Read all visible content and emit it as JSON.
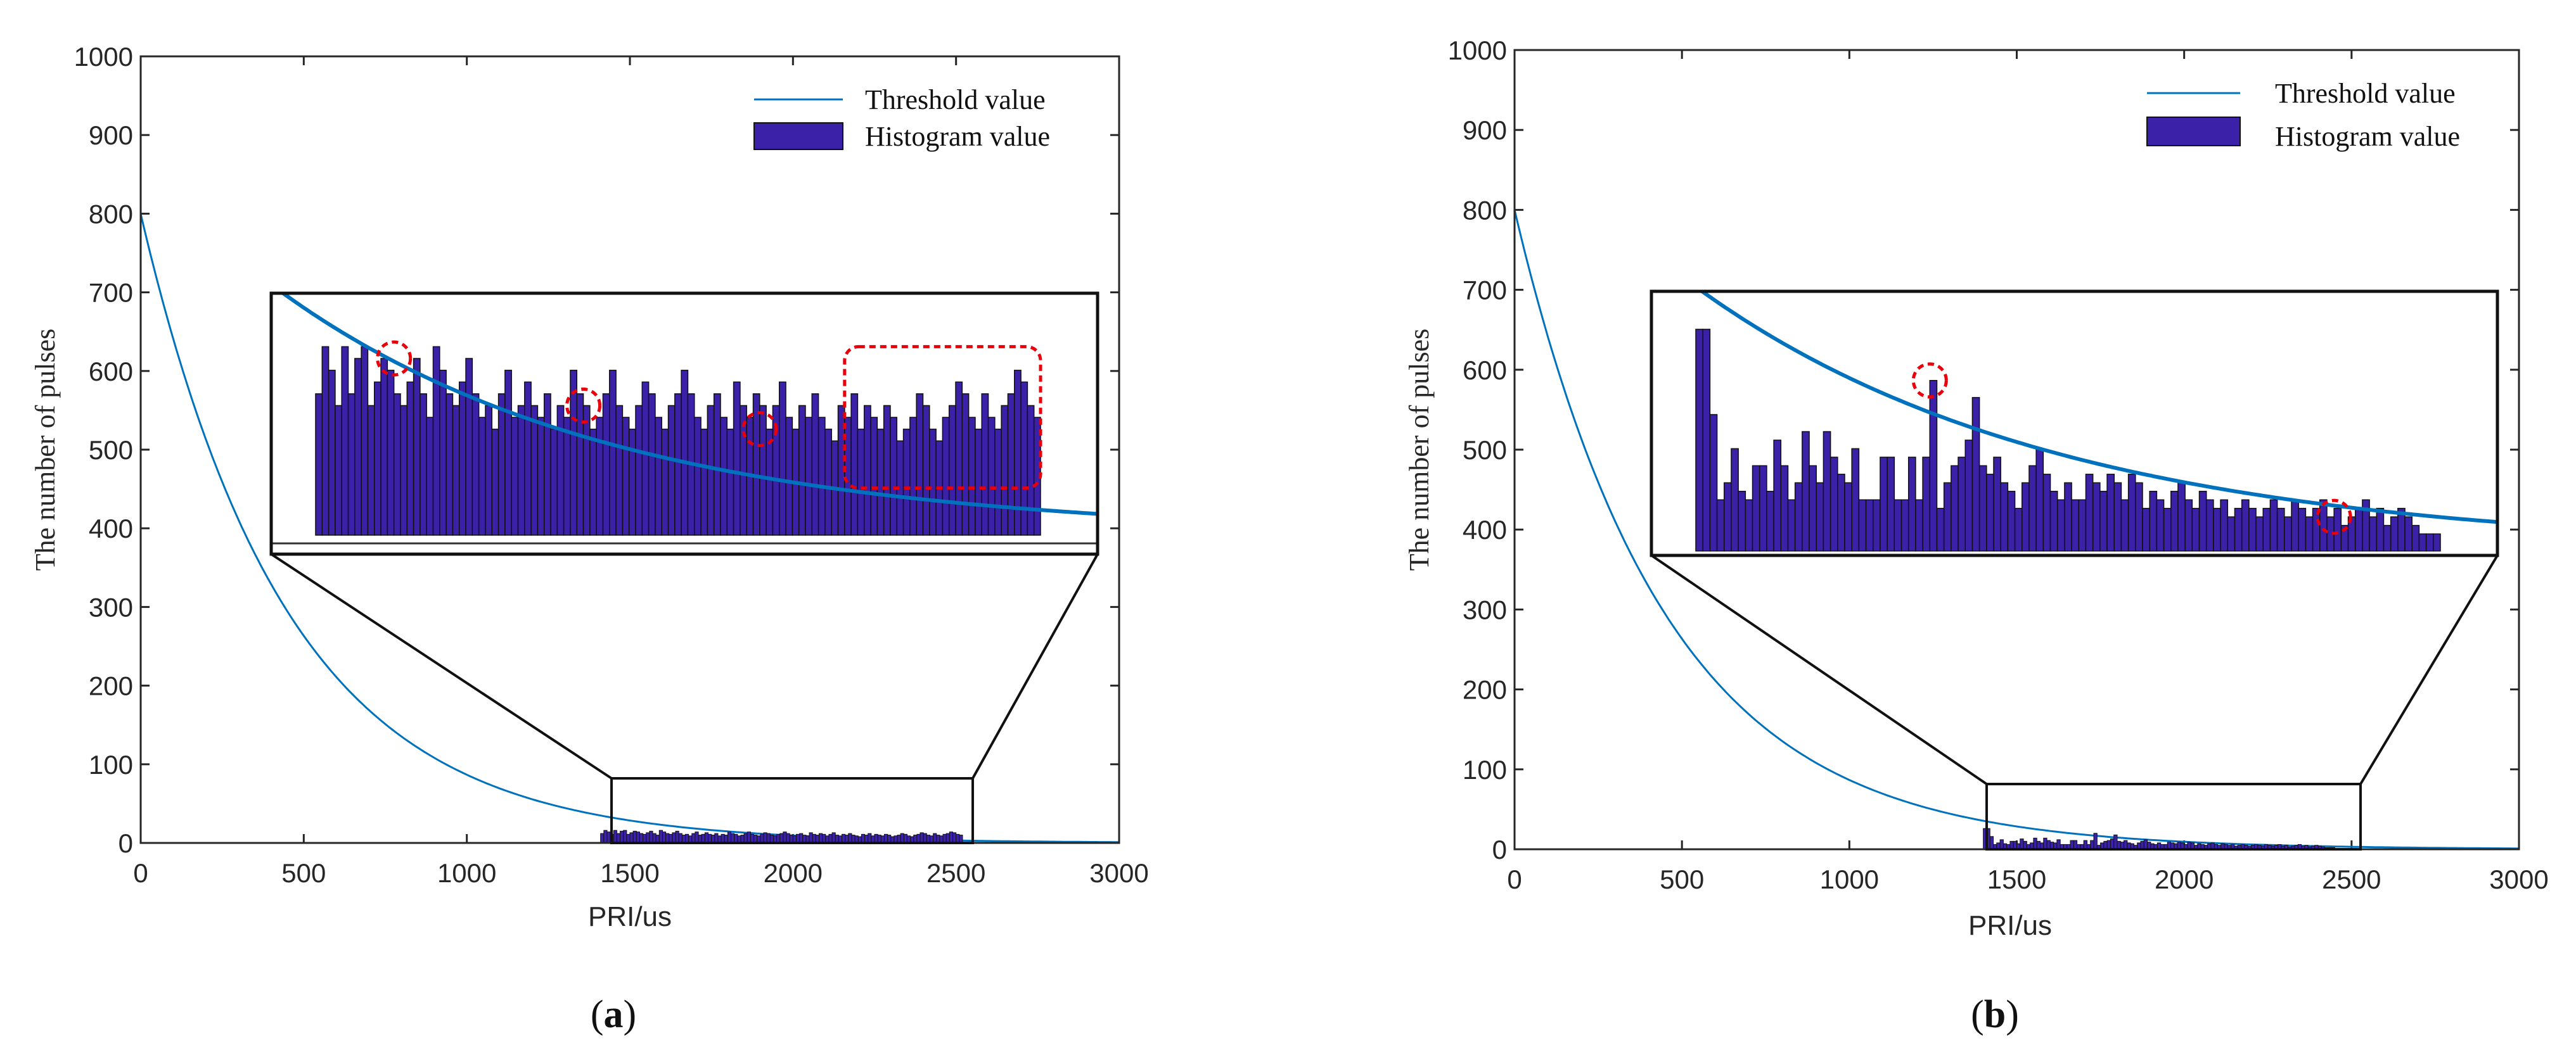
{
  "colors": {
    "threshold": "#0072BD",
    "bar_fill": "#3A21A8",
    "bar_edge": "#111111",
    "highlight": "#E8000B",
    "axis": "#262626"
  },
  "chart_data": [
    {
      "type": "bar",
      "panel_label": "a",
      "xlabel": "PRI/us",
      "ylabel": "The number of pulses",
      "xlim": [
        0,
        3000
      ],
      "ylim": [
        0,
        1000
      ],
      "xticks": [
        "0",
        "500",
        "1000",
        "1500",
        "2000",
        "2500",
        "3000"
      ],
      "yticks": [
        "0",
        "100",
        "200",
        "300",
        "400",
        "500",
        "600",
        "700",
        "800",
        "900",
        "1000"
      ],
      "legend": {
        "position": "top-right",
        "entries": [
          "Threshold value",
          "Histogram value"
        ]
      },
      "series": [
        {
          "name": "Threshold value",
          "type": "line",
          "formula": "800*exp(-x/450)",
          "x_range": [
            0,
            3000
          ]
        },
        {
          "name": "Histogram value",
          "type": "bar",
          "x_start": 1410,
          "bin_width": 10,
          "values": [
            12,
            16,
            14,
            11,
            16,
            12,
            15,
            16,
            11,
            13,
            15,
            14,
            12,
            11,
            13,
            15,
            12,
            10,
            16,
            14,
            12,
            11,
            13,
            15,
            12,
            10,
            11,
            9,
            12,
            14,
            10,
            11,
            13,
            11,
            10,
            12,
            9,
            11,
            10,
            14,
            12,
            11,
            9,
            10,
            12,
            14,
            11,
            10,
            9,
            11,
            13,
            12,
            10,
            9,
            11,
            12,
            14,
            12,
            10,
            9,
            11,
            12,
            10,
            9,
            13,
            11,
            10,
            12,
            11,
            9,
            11,
            13,
            10,
            9,
            11,
            10,
            12,
            10,
            9,
            8,
            11,
            10,
            12,
            9,
            11,
            10,
            9,
            11,
            10,
            8,
            9,
            10,
            12,
            11,
            9,
            8,
            10,
            11,
            13,
            12,
            10,
            9,
            12,
            10,
            9,
            11,
            12,
            14,
            13,
            11,
            10
          ]
        }
      ],
      "zoom": {
        "x_range": [
          1410,
          2520
        ],
        "y_range": [
          0,
          80
        ]
      },
      "highlights": [
        {
          "shape": "circle",
          "x": 1530,
          "y": 15
        },
        {
          "shape": "circle",
          "x": 1820,
          "y": 11
        },
        {
          "shape": "circle",
          "x": 2090,
          "y": 9
        },
        {
          "shape": "rounded-rect",
          "x_range": [
            2220,
            2520
          ],
          "y_range": [
            4,
            16
          ]
        }
      ]
    },
    {
      "type": "bar",
      "panel_label": "b",
      "xlabel": "PRI/us",
      "ylabel": "The number of pulses",
      "xlim": [
        0,
        3000
      ],
      "ylim": [
        0,
        1000
      ],
      "xticks": [
        "0",
        "500",
        "1000",
        "1500",
        "2000",
        "2500",
        "3000"
      ],
      "yticks": [
        "0",
        "100",
        "200",
        "300",
        "400",
        "500",
        "600",
        "700",
        "800",
        "900",
        "1000"
      ],
      "legend": {
        "position": "top-right",
        "entries": [
          "Threshold value",
          "Histogram value"
        ]
      },
      "series": [
        {
          "name": "Threshold value",
          "type": "line",
          "formula": "800*exp(-x/450)",
          "x_range": [
            0,
            3000
          ]
        },
        {
          "name": "Histogram value",
          "type": "bar",
          "x_start": 1400,
          "bin_width": 10,
          "values": [
            26,
            26,
            16,
            6,
            8,
            12,
            7,
            6,
            10,
            10,
            7,
            13,
            10,
            6,
            8,
            14,
            10,
            8,
            14,
            11,
            9,
            8,
            12,
            6,
            6,
            6,
            11,
            11,
            6,
            6,
            11,
            6,
            11,
            20,
            5,
            8,
            10,
            11,
            13,
            18,
            10,
            9,
            11,
            8,
            7,
            5,
            8,
            10,
            12,
            9,
            7,
            6,
            8,
            6,
            6,
            9,
            8,
            7,
            9,
            8,
            6,
            9,
            8,
            5,
            7,
            6,
            5,
            7,
            8,
            6,
            5,
            7,
            6,
            5,
            6,
            4,
            5,
            6,
            5,
            4,
            5,
            6,
            5,
            4,
            6,
            5,
            4,
            5,
            6,
            4,
            5,
            3,
            4,
            5,
            6,
            4,
            5,
            3,
            4,
            5,
            4,
            3,
            2,
            2,
            2
          ]
        }
      ],
      "zoom": {
        "x_range": [
          1400,
          2480
        ],
        "y_range": [
          0,
          80
        ]
      },
      "highlights": [
        {
          "shape": "circle",
          "x": 1730,
          "y": 20
        },
        {
          "shape": "circle",
          "x": 2300,
          "y": 4
        }
      ]
    }
  ]
}
